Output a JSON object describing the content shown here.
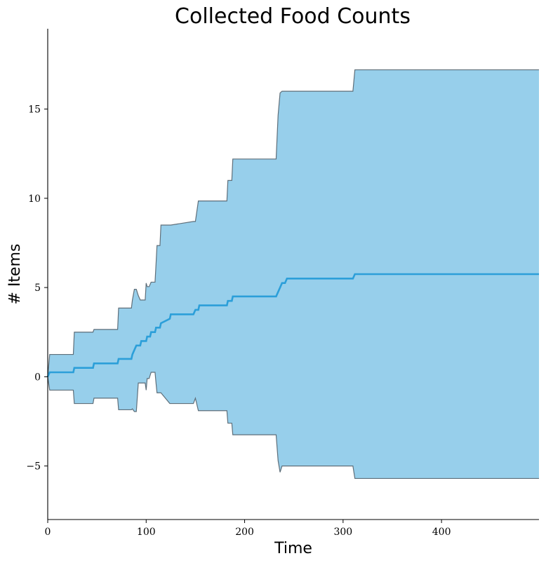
{
  "chart_data": {
    "type": "area",
    "title": "Collected Food Counts",
    "xlabel": "Time",
    "ylabel": "# Items",
    "xlim": [
      0,
      499
    ],
    "ylim": [
      -8,
      19.5
    ],
    "xticks": [
      0,
      100,
      200,
      300,
      400
    ],
    "xtick_labels": [
      "0",
      "100",
      "200",
      "300",
      "400"
    ],
    "yticks": [
      -5,
      0,
      5,
      10,
      15
    ],
    "ytick_labels": [
      "−5",
      "0",
      "5",
      "10",
      "15"
    ],
    "grid": false,
    "legend": "none",
    "colors": {
      "band_fill": "#97cfeb",
      "band_edge": "#5f6f7a",
      "line": "#2c9fd9"
    },
    "series": [
      {
        "name": "",
        "kind": "mean-line",
        "x": [
          0,
          2,
          26,
          27,
          46,
          47,
          71,
          72,
          85,
          86,
          88,
          90,
          94,
          95,
          100,
          101,
          104,
          105,
          109,
          110,
          114,
          115,
          124,
          125,
          148,
          150,
          153,
          154,
          182,
          183,
          187,
          188,
          232,
          234,
          236,
          238,
          241,
          243,
          310,
          312,
          499
        ],
        "y": [
          0,
          0.25,
          0.25,
          0.5,
          0.5,
          0.75,
          0.75,
          1.0,
          1.0,
          1.25,
          1.5,
          1.75,
          1.75,
          2.0,
          2.0,
          2.25,
          2.25,
          2.5,
          2.5,
          2.75,
          2.75,
          3.0,
          3.25,
          3.5,
          3.5,
          3.75,
          3.75,
          4.0,
          4.0,
          4.25,
          4.25,
          4.5,
          4.5,
          4.75,
          5.0,
          5.25,
          5.25,
          5.5,
          5.5,
          5.75,
          5.75
        ]
      },
      {
        "name": "",
        "kind": "band-upper",
        "x": [
          0,
          2,
          26,
          27,
          46,
          47,
          71,
          72,
          85,
          86,
          88,
          90,
          92,
          94,
          99,
          100,
          101,
          103,
          105,
          109,
          110,
          111,
          114,
          115,
          124,
          125,
          148,
          150,
          153,
          154,
          182,
          183,
          187,
          188,
          232,
          234,
          236,
          238,
          241,
          243,
          310,
          312,
          499
        ],
        "y": [
          0,
          1.25,
          1.25,
          2.5,
          2.5,
          2.65,
          2.65,
          3.85,
          3.85,
          4.3,
          4.9,
          4.9,
          4.55,
          4.3,
          4.3,
          5.25,
          5.05,
          5.05,
          5.3,
          5.3,
          6.3,
          7.35,
          7.35,
          8.5,
          8.5,
          8.5,
          8.7,
          8.7,
          9.85,
          9.85,
          9.85,
          11.0,
          11.0,
          12.2,
          12.2,
          14.65,
          15.9,
          16.0,
          16.0,
          16.0,
          16.0,
          17.2,
          17.2
        ]
      },
      {
        "name": "",
        "kind": "band-lower",
        "x": [
          0,
          2,
          26,
          27,
          46,
          47,
          71,
          72,
          85,
          86,
          88,
          90,
          92,
          94,
          99,
          100,
          101,
          103,
          105,
          109,
          110,
          111,
          114,
          115,
          124,
          125,
          148,
          150,
          153,
          154,
          182,
          183,
          187,
          188,
          232,
          234,
          236,
          238,
          241,
          243,
          310,
          312,
          499
        ],
        "y": [
          0,
          -0.75,
          -0.75,
          -1.5,
          -1.5,
          -1.2,
          -1.2,
          -1.85,
          -1.85,
          -1.8,
          -1.95,
          -1.95,
          -0.35,
          -0.35,
          -0.35,
          -0.75,
          -0.1,
          -0.1,
          0.25,
          0.25,
          -0.35,
          -0.9,
          -0.9,
          -0.9,
          -1.5,
          -1.5,
          -1.5,
          -1.2,
          -1.9,
          -1.9,
          -1.9,
          -2.6,
          -2.6,
          -3.25,
          -3.25,
          -4.7,
          -5.35,
          -5.0,
          -5.0,
          -5.0,
          -5.0,
          -5.7,
          -5.7
        ]
      }
    ]
  }
}
